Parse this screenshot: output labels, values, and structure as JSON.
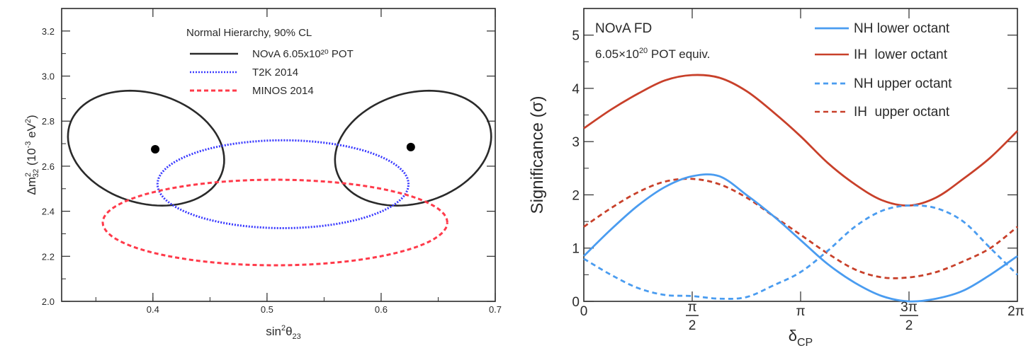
{
  "chart_data": [
    {
      "type": "line",
      "plot_kind": "contour",
      "title": "Normal Hierarchy, 90% CL",
      "xlabel": "sin²θ₂₃",
      "ylabel": "Δm²₃₂ (10⁻³ eV²)",
      "xlim": [
        0.32,
        0.7
      ],
      "ylim": [
        2.0,
        3.3
      ],
      "x_ticks": [
        "0.4",
        "0.5",
        "0.6",
        "0.7"
      ],
      "y_ticks": [
        "2.0",
        "2.2",
        "2.4",
        "2.6",
        "2.8",
        "3.0",
        "3.2"
      ],
      "legend_placement": "top-right",
      "series": [
        {
          "name": "NOvA 6.05x10²⁰ POT",
          "style": "solid",
          "color": "#2a2a2a",
          "contours": [
            {
              "cx": 0.394,
              "cy": 2.68,
              "rx": 0.067,
              "ry": 0.255,
              "tilt": -0.055
            },
            {
              "cx": 0.628,
              "cy": 2.68,
              "rx": 0.067,
              "ry": 0.255,
              "tilt": 0.055
            }
          ],
          "best_fit": [
            {
              "x": 0.402,
              "y": 2.675
            },
            {
              "x": 0.626,
              "y": 2.685
            }
          ]
        },
        {
          "name": "T2K 2014",
          "style": "dotted",
          "color": "#3a3aff",
          "contours": [
            {
              "cx": 0.514,
              "cy": 2.52,
              "rx": 0.11,
              "ry": 0.195,
              "tilt": 0
            }
          ]
        },
        {
          "name": "MINOS 2014",
          "style": "dashed",
          "color": "#ff3a4a",
          "contours": [
            {
              "cx": 0.507,
              "cy": 2.35,
              "rx": 0.151,
              "ry": 0.19,
              "tilt": 0
            }
          ]
        }
      ]
    },
    {
      "type": "line",
      "title": "NOvA FD",
      "subtitle": "6.05×10²⁰ POT equiv.",
      "xlabel": "δCP",
      "ylabel": "Significance (σ)",
      "xlim": [
        0,
        6.2832
      ],
      "ylim": [
        0,
        5.5
      ],
      "x_ticks": [
        "0",
        "π/2",
        "π",
        "3π/2",
        "2π"
      ],
      "y_ticks": [
        "0",
        "1",
        "2",
        "3",
        "4",
        "5"
      ],
      "legend_placement": "top-right",
      "x": [
        0,
        0.3927,
        0.7854,
        1.1781,
        1.5708,
        1.9635,
        2.3562,
        2.7489,
        3.1416,
        3.5343,
        3.927,
        4.3197,
        4.7124,
        5.1051,
        5.4978,
        5.8905,
        6.2832
      ],
      "series": [
        {
          "name": "NH lower octant",
          "style": "solid",
          "color": "#4a9cf0",
          "values": [
            0.85,
            1.35,
            1.8,
            2.15,
            2.35,
            2.35,
            2.0,
            1.6,
            1.15,
            0.7,
            0.35,
            0.1,
            0.0,
            0.05,
            0.2,
            0.5,
            0.85
          ]
        },
        {
          "name": "IH  lower octant",
          "style": "solid",
          "color": "#c8402a",
          "values": [
            3.25,
            3.6,
            3.9,
            4.15,
            4.25,
            4.2,
            3.95,
            3.55,
            3.1,
            2.6,
            2.2,
            1.9,
            1.8,
            1.95,
            2.3,
            2.7,
            3.2
          ]
        },
        {
          "name": "NH upper octant",
          "style": "dashed",
          "color": "#4a9cf0",
          "values": [
            0.8,
            0.5,
            0.25,
            0.12,
            0.1,
            0.05,
            0.08,
            0.3,
            0.55,
            0.95,
            1.4,
            1.7,
            1.8,
            1.75,
            1.5,
            1.0,
            0.5
          ]
        },
        {
          "name": "IH  upper octant",
          "style": "dashed",
          "color": "#c8402a",
          "values": [
            1.4,
            1.75,
            2.05,
            2.25,
            2.3,
            2.2,
            1.95,
            1.6,
            1.25,
            0.9,
            0.6,
            0.45,
            0.45,
            0.55,
            0.75,
            1.0,
            1.4
          ]
        }
      ]
    }
  ]
}
